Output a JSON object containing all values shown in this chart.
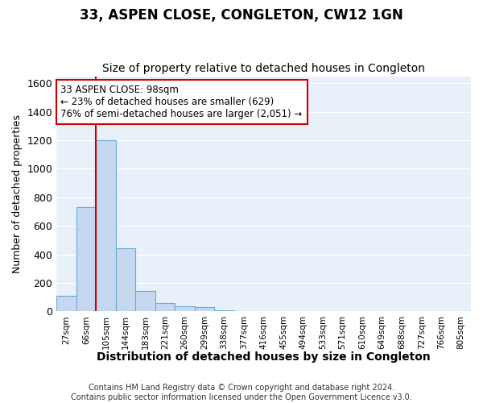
{
  "title": "33, ASPEN CLOSE, CONGLETON, CW12 1GN",
  "subtitle": "Size of property relative to detached houses in Congleton",
  "xlabel": "Distribution of detached houses by size in Congleton",
  "ylabel": "Number of detached properties",
  "footnote1": "Contains HM Land Registry data © Crown copyright and database right 2024.",
  "footnote2": "Contains public sector information licensed under the Open Government Licence v3.0.",
  "categories": [
    "27sqm",
    "66sqm",
    "105sqm",
    "144sqm",
    "183sqm",
    "221sqm",
    "260sqm",
    "299sqm",
    "338sqm",
    "377sqm",
    "416sqm",
    "455sqm",
    "494sqm",
    "533sqm",
    "571sqm",
    "610sqm",
    "649sqm",
    "688sqm",
    "727sqm",
    "766sqm",
    "805sqm"
  ],
  "values": [
    110,
    730,
    1200,
    440,
    145,
    60,
    35,
    30,
    5,
    0,
    0,
    0,
    0,
    0,
    0,
    0,
    0,
    0,
    0,
    0,
    0
  ],
  "bar_color": "#c5d8f0",
  "bar_edge_color": "#6aaad4",
  "background_color": "#e8f0fa",
  "grid_color": "#ffffff",
  "redline_x": 1.5,
  "redline_color": "#cc0000",
  "annotation_text": "33 ASPEN CLOSE: 98sqm\n← 23% of detached houses are smaller (629)\n76% of semi-detached houses are larger (2,051) →",
  "annotation_box_color": "#cc0000",
  "ylim": [
    0,
    1650
  ],
  "yticks": [
    0,
    200,
    400,
    600,
    800,
    1000,
    1200,
    1400,
    1600
  ],
  "fig_facecolor": "#ffffff",
  "title_fontsize": 12,
  "subtitle_fontsize": 10,
  "xlabel_fontsize": 10,
  "ylabel_fontsize": 9
}
